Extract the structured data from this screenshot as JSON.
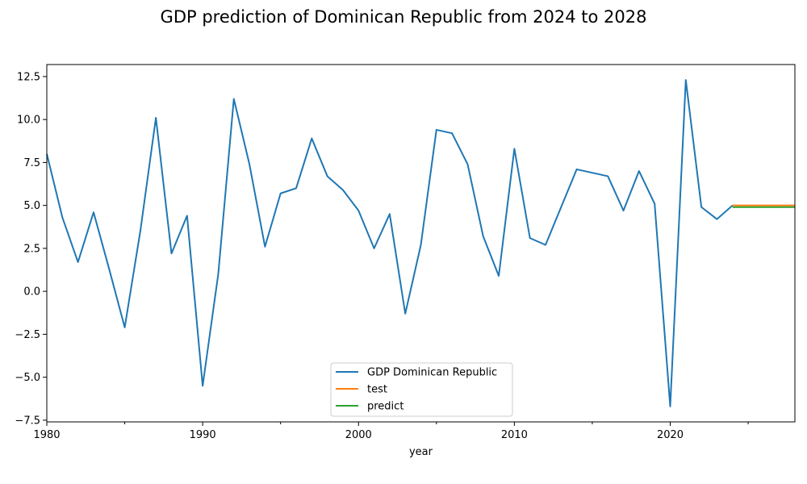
{
  "chart_data": {
    "type": "line",
    "title": "GDP prediction of Dominican Republic from 2024 to 2028",
    "xlabel": "year",
    "ylabel": "",
    "xlim": [
      1980,
      2028
    ],
    "ylim": [
      -7.6,
      13.2
    ],
    "xticks": [
      1980,
      1990,
      2000,
      2010,
      2020
    ],
    "xticks_minor": [
      1985,
      1995,
      2005,
      2015,
      2025
    ],
    "yticks": [
      -7.5,
      -5.0,
      -2.5,
      0.0,
      2.5,
      5.0,
      7.5,
      10.0,
      12.5
    ],
    "ytick_labels": [
      "−7.5",
      "−5.0",
      "−2.5",
      "0.0",
      "2.5",
      "5.0",
      "7.5",
      "10.0",
      "12.5"
    ],
    "grid": false,
    "legend_position": "bottom-center",
    "series": [
      {
        "name": "GDP Dominican Republic",
        "color": "#1f77b4",
        "x": [
          1980,
          1981,
          1982,
          1983,
          1984,
          1985,
          1986,
          1987,
          1988,
          1989,
          1990,
          1991,
          1992,
          1993,
          1994,
          1995,
          1996,
          1997,
          1998,
          1999,
          2000,
          2001,
          2002,
          2003,
          2004,
          2005,
          2006,
          2007,
          2008,
          2009,
          2010,
          2011,
          2012,
          2013,
          2014,
          2015,
          2016,
          2017,
          2018,
          2019,
          2020,
          2021,
          2022,
          2023,
          2024
        ],
        "y": [
          8.0,
          4.3,
          1.7,
          4.6,
          1.3,
          -2.1,
          3.5,
          10.1,
          2.2,
          4.4,
          -5.5,
          1.0,
          11.2,
          7.4,
          2.6,
          5.7,
          6.0,
          8.9,
          6.7,
          5.9,
          4.7,
          2.5,
          4.5,
          -1.3,
          2.7,
          9.4,
          9.2,
          7.4,
          3.2,
          0.9,
          8.3,
          3.1,
          2.7,
          4.9,
          7.1,
          6.9,
          6.7,
          4.7,
          7.0,
          5.1,
          -6.7,
          12.3,
          4.9,
          4.2,
          5.0
        ]
      },
      {
        "name": "test",
        "color": "#ff7f0e",
        "x": [
          2024,
          2025,
          2026,
          2027,
          2028
        ],
        "y": [
          5.0,
          5.0,
          5.0,
          5.0,
          5.0
        ]
      },
      {
        "name": "predict",
        "color": "#2ca02c",
        "x": [
          2024,
          2025,
          2026,
          2027,
          2028
        ],
        "y": [
          4.9,
          4.9,
          4.9,
          4.9,
          4.9
        ]
      }
    ]
  }
}
